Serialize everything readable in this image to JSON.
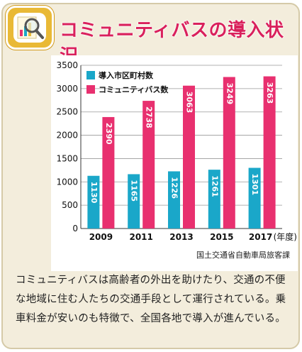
{
  "header": {
    "title": "コミュニティバスの導入状況",
    "icon": "chart-magnifier-icon"
  },
  "chart_data": {
    "type": "bar",
    "categories": [
      "2009",
      "2011",
      "2013",
      "2015",
      "2017"
    ],
    "xunit": "(年度)",
    "series": [
      {
        "name": "導入市区町村数",
        "color": "#1aa7c9",
        "values": [
          1130,
          1165,
          1226,
          1261,
          1301
        ]
      },
      {
        "name": "コミュニティバス数",
        "color": "#e8306f",
        "values": [
          2390,
          2738,
          3063,
          3249,
          3263
        ]
      }
    ],
    "ylim": [
      0,
      3500
    ],
    "yticks": [
      0,
      500,
      1000,
      1500,
      2000,
      2500,
      3000,
      3500
    ],
    "grid": true,
    "legend": "top-left"
  },
  "source": "国土交通省自動車局旅客課",
  "body": "コミュニティバスは高齢者の外出を助けたり、交通の不便な地域に住む人たちの交通手段として運行されている。乗車料金が安いのも特徴で、全国各地で導入が進んでいる。"
}
